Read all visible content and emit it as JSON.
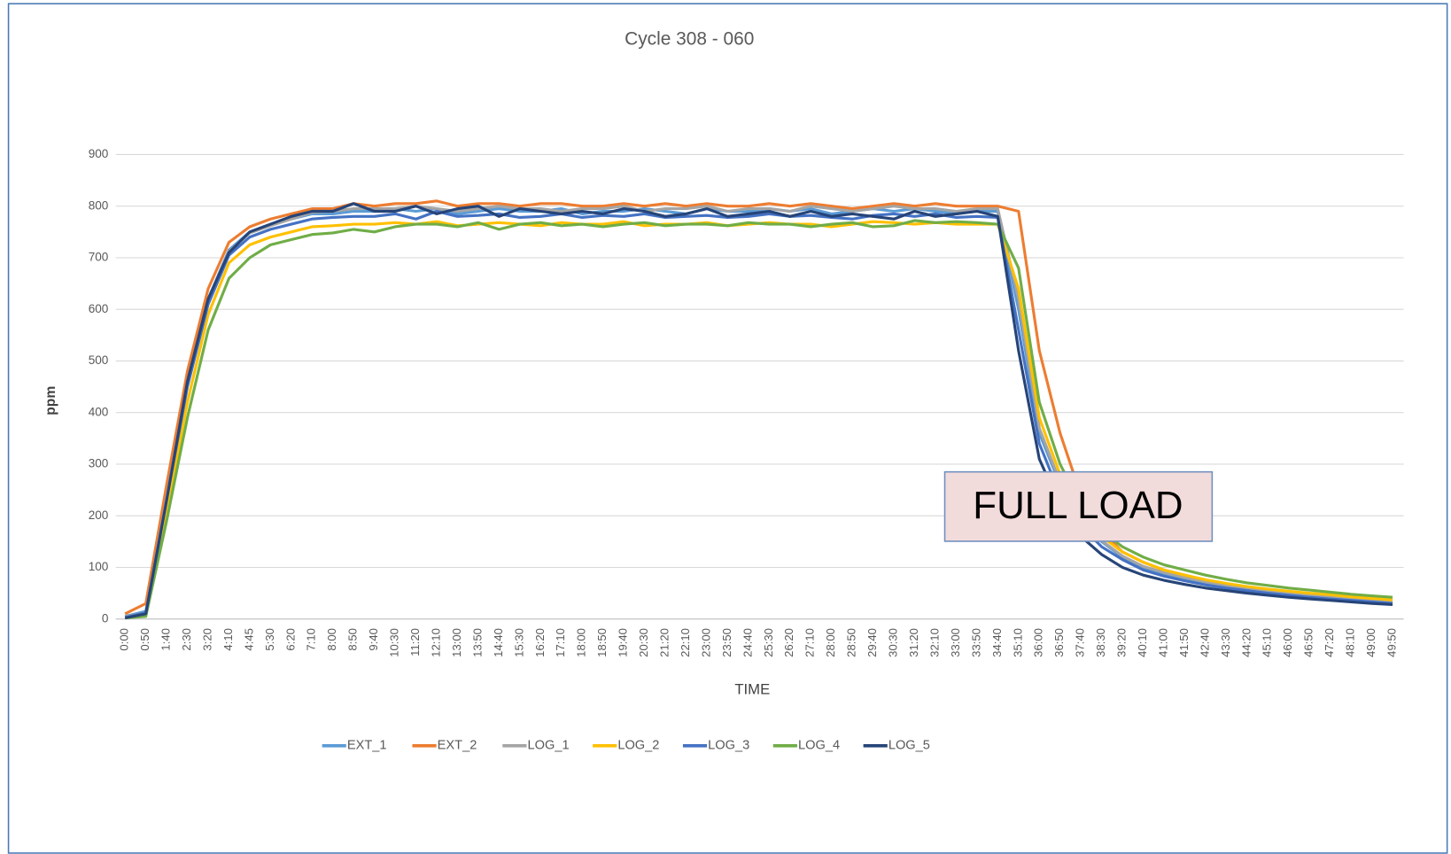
{
  "chart_data": {
    "type": "line",
    "title": "Cycle 308 - 060",
    "x_label": "TIME",
    "y_label": "ppm",
    "annotation": "FULL LOAD",
    "categories": [
      "0:00",
      "0:50",
      "1:40",
      "2:30",
      "3:20",
      "4:10",
      "4:45",
      "5:30",
      "6:20",
      "7:10",
      "8:00",
      "8:50",
      "9:40",
      "10:30",
      "11:20",
      "12:10",
      "13:00",
      "13:50",
      "14:40",
      "15:30",
      "16:20",
      "17:10",
      "18:00",
      "18:50",
      "19:40",
      "20:30",
      "21:20",
      "22:10",
      "23:00",
      "23:50",
      "24:40",
      "25:30",
      "26:20",
      "27:10",
      "28:00",
      "28:50",
      "29:40",
      "30:30",
      "31:20",
      "32:10",
      "33:00",
      "33:50",
      "34:40",
      "35:10",
      "36:00",
      "36:50",
      "37:40",
      "38:30",
      "39:20",
      "40:10",
      "41:00",
      "41:50",
      "42:40",
      "43:30",
      "44:20",
      "45:10",
      "46:00",
      "46:50",
      "47:20",
      "48:10",
      "49:00",
      "49:50"
    ],
    "ylim": [
      0,
      900
    ],
    "yticks": [
      0,
      100,
      200,
      300,
      400,
      500,
      600,
      700,
      800,
      900
    ],
    "grid": true,
    "legend": "bottom",
    "series": [
      {
        "name": "EXT_1",
        "color": "#5b9bd5",
        "values": [
          5,
          15,
          240,
          460,
          620,
          715,
          750,
          765,
          775,
          785,
          785,
          790,
          790,
          795,
          790,
          795,
          785,
          790,
          795,
          790,
          790,
          795,
          785,
          790,
          790,
          795,
          790,
          785,
          795,
          790,
          790,
          795,
          790,
          795,
          785,
          790,
          795,
          790,
          795,
          790,
          785,
          790,
          790,
          600,
          360,
          260,
          190,
          150,
          120,
          100,
          88,
          78,
          70,
          63,
          57,
          52,
          48,
          45,
          42,
          38,
          35,
          32
        ]
      },
      {
        "name": "EXT_2",
        "color": "#ed7d31",
        "values": [
          10,
          30,
          260,
          480,
          640,
          730,
          760,
          775,
          785,
          795,
          795,
          805,
          800,
          805,
          805,
          810,
          800,
          805,
          805,
          800,
          805,
          805,
          800,
          800,
          805,
          800,
          805,
          800,
          805,
          800,
          800,
          805,
          800,
          805,
          800,
          795,
          800,
          805,
          800,
          805,
          800,
          800,
          800,
          790,
          520,
          360,
          240,
          170,
          130,
          110,
          95,
          85,
          75,
          68,
          62,
          57,
          53,
          49,
          46,
          42,
          39,
          36
        ]
      },
      {
        "name": "LOG_1",
        "color": "#a5a5a5",
        "values": [
          4,
          12,
          235,
          455,
          615,
          712,
          748,
          762,
          775,
          788,
          790,
          795,
          795,
          795,
          800,
          795,
          790,
          795,
          800,
          795,
          795,
          790,
          795,
          795,
          800,
          790,
          795,
          795,
          800,
          790,
          795,
          795,
          790,
          800,
          795,
          790,
          795,
          800,
          795,
          795,
          790,
          795,
          795,
          620,
          370,
          265,
          195,
          152,
          122,
          102,
          90,
          80,
          72,
          65,
          59,
          54,
          50,
          46,
          43,
          40,
          37,
          34
        ]
      },
      {
        "name": "LOG_2",
        "color": "#ffc000",
        "values": [
          3,
          10,
          210,
          420,
          590,
          690,
          725,
          740,
          750,
          760,
          762,
          765,
          765,
          768,
          765,
          770,
          762,
          765,
          768,
          765,
          762,
          768,
          765,
          765,
          770,
          762,
          765,
          765,
          768,
          762,
          765,
          768,
          765,
          765,
          760,
          765,
          770,
          768,
          765,
          768,
          765,
          765,
          765,
          640,
          390,
          280,
          200,
          160,
          130,
          110,
          95,
          85,
          76,
          69,
          63,
          58,
          54,
          50,
          47,
          43,
          40,
          37
        ]
      },
      {
        "name": "LOG_3",
        "color": "#4472c4",
        "values": [
          3,
          12,
          230,
          450,
          610,
          705,
          740,
          755,
          765,
          775,
          778,
          780,
          780,
          785,
          775,
          790,
          780,
          782,
          785,
          778,
          780,
          785,
          778,
          782,
          780,
          785,
          778,
          780,
          782,
          778,
          780,
          785,
          780,
          782,
          778,
          775,
          782,
          785,
          780,
          785,
          778,
          780,
          778,
          560,
          340,
          240,
          180,
          140,
          115,
          95,
          83,
          74,
          66,
          60,
          55,
          50,
          46,
          42,
          39,
          36,
          33,
          30
        ]
      },
      {
        "name": "LOG_4",
        "color": "#70ad47",
        "values": [
          2,
          5,
          190,
          390,
          560,
          660,
          700,
          725,
          735,
          745,
          748,
          755,
          750,
          760,
          765,
          765,
          760,
          768,
          755,
          765,
          768,
          762,
          765,
          760,
          765,
          768,
          762,
          765,
          765,
          762,
          768,
          765,
          765,
          760,
          765,
          768,
          760,
          762,
          772,
          768,
          770,
          768,
          765,
          680,
          420,
          300,
          220,
          170,
          140,
          120,
          105,
          95,
          85,
          77,
          70,
          65,
          60,
          56,
          52,
          48,
          45,
          42
        ]
      },
      {
        "name": "LOG_5",
        "color": "#264478",
        "values": [
          2,
          10,
          230,
          460,
          620,
          710,
          750,
          765,
          780,
          790,
          790,
          805,
          790,
          790,
          800,
          785,
          795,
          800,
          780,
          795,
          790,
          785,
          790,
          785,
          795,
          790,
          780,
          785,
          795,
          780,
          785,
          790,
          780,
          790,
          780,
          785,
          780,
          775,
          790,
          780,
          785,
          790,
          780,
          520,
          310,
          220,
          160,
          125,
          100,
          85,
          75,
          67,
          60,
          55,
          50,
          46,
          42,
          39,
          36,
          33,
          30,
          28
        ]
      }
    ]
  }
}
